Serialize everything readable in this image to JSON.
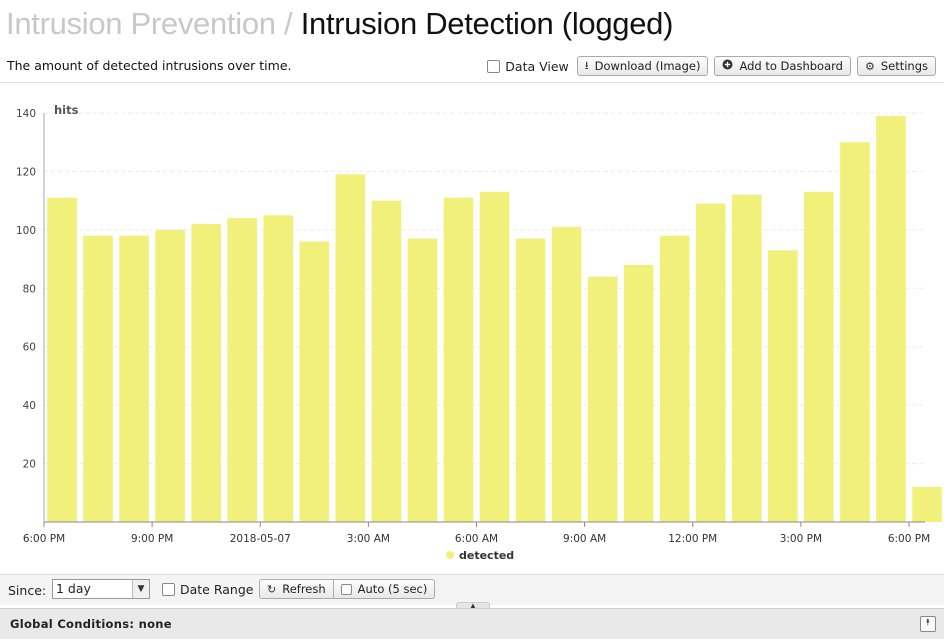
{
  "header": {
    "crumb": "Intrusion Prevention",
    "separator": "/",
    "title": "Intrusion Detection (logged)"
  },
  "description": "The amount of detected intrusions over time.",
  "toolbar": {
    "data_view_label": "Data View",
    "download_label": "Download (Image)",
    "add_dashboard_label": "Add to Dashboard",
    "settings_label": "Settings",
    "download_icon": "download-icon",
    "add_icon": "plus-circle-icon",
    "settings_icon": "gear-icon"
  },
  "chart_data": {
    "type": "bar",
    "ylabel": "hits",
    "ylim": [
      0,
      140
    ],
    "yticks": [
      20,
      40,
      60,
      80,
      100,
      120,
      140
    ],
    "xtick_labels": [
      "6:00 PM",
      "9:00 PM",
      "2018-05-07",
      "3:00 AM",
      "6:00 AM",
      "9:00 AM",
      "12:00 PM",
      "3:00 PM",
      "6:00 PM"
    ],
    "x_start": "2018-05-06 18:00",
    "x_end": "2018-05-07 18:00",
    "series": [
      {
        "name": "detected",
        "color": "#f0f07a",
        "x": [
          "2018-05-06 18:00",
          "2018-05-06 19:00",
          "2018-05-06 20:00",
          "2018-05-06 21:00",
          "2018-05-06 22:00",
          "2018-05-06 23:00",
          "2018-05-07 00:00",
          "2018-05-07 01:00",
          "2018-05-07 02:00",
          "2018-05-07 03:00",
          "2018-05-07 04:00",
          "2018-05-07 05:00",
          "2018-05-07 06:00",
          "2018-05-07 07:00",
          "2018-05-07 08:00",
          "2018-05-07 09:00",
          "2018-05-07 10:00",
          "2018-05-07 11:00",
          "2018-05-07 12:00",
          "2018-05-07 13:00",
          "2018-05-07 14:00",
          "2018-05-07 15:00",
          "2018-05-07 16:00",
          "2018-05-07 17:00",
          "2018-05-07 18:00"
        ],
        "values": [
          111,
          98,
          98,
          100,
          102,
          104,
          105,
          96,
          119,
          110,
          97,
          111,
          113,
          97,
          101,
          84,
          88,
          98,
          109,
          112,
          93,
          113,
          130,
          139,
          12
        ]
      }
    ],
    "legend": "bottom-center",
    "grid": true
  },
  "footer": {
    "since_label": "Since:",
    "since_value": "1 day",
    "date_range_label": "Date Range",
    "refresh_label": "Refresh",
    "auto_label": "Auto (5 sec)",
    "refresh_icon": "refresh-icon"
  },
  "global_conditions": {
    "label": "Global Conditions: none",
    "toggle_icon": "chevron-up-icon"
  }
}
